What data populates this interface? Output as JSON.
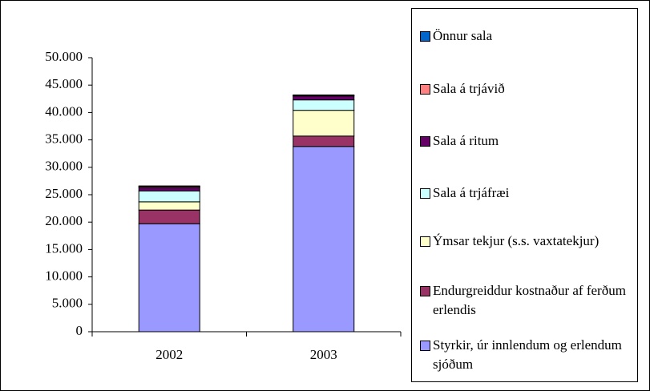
{
  "chart_data": {
    "type": "stacked_bar",
    "categories": [
      "2002",
      "2003"
    ],
    "series": [
      {
        "name": "Styrkir, úr innlendum og erlendum sjóðum",
        "color": "#9999ff",
        "values": [
          19700,
          33800
        ]
      },
      {
        "name": "Endurgreiddur kostnaður af ferðum erlendis",
        "color": "#993366",
        "values": [
          2500,
          1900
        ]
      },
      {
        "name": "Ýmsar tekjur (s.s. vaxtatekjur)",
        "color": "#ffffcc",
        "values": [
          1500,
          4700
        ]
      },
      {
        "name": "Sala á trjáfræi",
        "color": "#ccffff",
        "values": [
          2000,
          1900
        ]
      },
      {
        "name": "Sala á ritum",
        "color": "#660066",
        "values": [
          600,
          700
        ]
      },
      {
        "name": "Sala á trjávið",
        "color": "#ff8080",
        "values": [
          200,
          100
        ]
      },
      {
        "name": "Önnur sala",
        "color": "#0066cc",
        "values": [
          100,
          100
        ]
      }
    ],
    "ylim": [
      0,
      50000
    ],
    "yticks": [
      0,
      {
        "value": 5000,
        "label": "5.000"
      },
      {
        "value": 10000,
        "label": "10.000"
      },
      {
        "value": 15000,
        "label": "15.000"
      },
      {
        "value": 20000,
        "label": "20.000"
      },
      {
        "value": 25000,
        "label": "25.000"
      },
      {
        "value": 30000,
        "label": "30.000"
      },
      {
        "value": 35000,
        "label": "35.000"
      },
      {
        "value": 40000,
        "label": "40.000"
      },
      {
        "value": 45000,
        "label": "45.000"
      },
      {
        "value": 50000,
        "label": "50.000"
      }
    ],
    "legend": "right"
  }
}
